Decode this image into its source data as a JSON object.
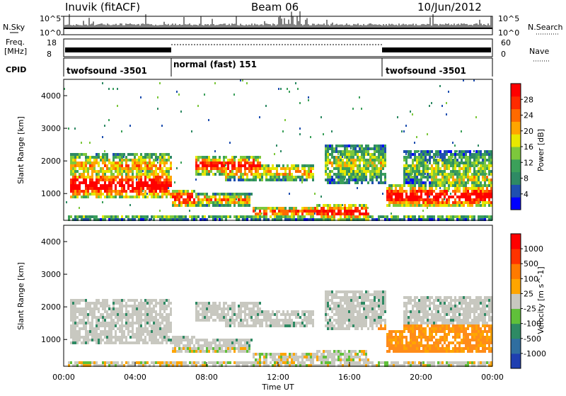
{
  "header": {
    "station": "Inuvik (fitACF)",
    "beam": "Beam 06",
    "date": "10/Jun/2012"
  },
  "panels": {
    "nsky": {
      "left_label": "N.Sky",
      "right_label": "N.Search",
      "ticks_left": [
        "10^5",
        "10^0"
      ],
      "ticks_right": [
        "10^5",
        "10^0"
      ]
    },
    "freq": {
      "left_label_1": "Freq.",
      "left_label_2": "[MHz]",
      "right_label": "Nave",
      "ticks_left": [
        "18",
        "8"
      ],
      "ticks_right": [
        "60",
        "0"
      ]
    },
    "cpid": {
      "left_label": "CPID",
      "segments": [
        {
          "label": "twofsound -3501",
          "start": 0,
          "end": 6
        },
        {
          "label": "normal (fast) 151",
          "start": 6,
          "end": 18
        },
        {
          "label": "twofsound -3501",
          "start": 18,
          "end": 24
        }
      ]
    }
  },
  "x_ticks": [
    "00:00",
    "04:00",
    "08:00",
    "12:00",
    "16:00",
    "20:00",
    "00:00"
  ],
  "x_label": "Time UT",
  "y_label": "Slant Range [km]",
  "y_ticks": [
    "1000",
    "2000",
    "3000",
    "4000"
  ],
  "power_colorbar": {
    "label": "Power [dB]",
    "ticks": [
      "4",
      "8",
      "12",
      "16",
      "20",
      "24",
      "28"
    ],
    "colors": [
      "#0000ff",
      "#1f4fb0",
      "#2e8a64",
      "#3ba05a",
      "#7dc83c",
      "#e8e800",
      "#ffa500",
      "#ff6a00",
      "#ff2b00",
      "#ff0000"
    ]
  },
  "velocity_colorbar": {
    "label": "Velocity [m s^-1]",
    "ticks": [
      "1000",
      "500",
      "100",
      "25",
      "-25",
      "-100",
      "-500",
      "-1000"
    ],
    "colors": [
      "#1f3fb0",
      "#2f6ea0",
      "#2e8a64",
      "#60c03a",
      "#c8c8c0",
      "#ffa500",
      "#ff7a00",
      "#ff3300",
      "#ff0000"
    ]
  },
  "chart_data": {
    "type": "heatmap",
    "title": "Inuvik (fitACF) Beam 06 10/Jun/2012",
    "xlabel": "Time UT",
    "ylabel": "Slant Range [km]",
    "xlim_hours": [
      0,
      24
    ],
    "ylim_km": [
      180,
      4500
    ],
    "panels": [
      "Power [dB]",
      "Velocity [m s^-1]"
    ],
    "power_range_db": [
      0,
      30
    ],
    "velocity_range_ms": [
      -1000,
      1000
    ],
    "cpid_segments": [
      {
        "label": "twofsound -3501",
        "start_hour": 0,
        "end_hour": 6
      },
      {
        "label": "normal (fast) 151",
        "start_hour": 6,
        "end_hour": 18
      },
      {
        "label": "twofsound -3501",
        "start_hour": 18,
        "end_hour": 24
      }
    ]
  }
}
